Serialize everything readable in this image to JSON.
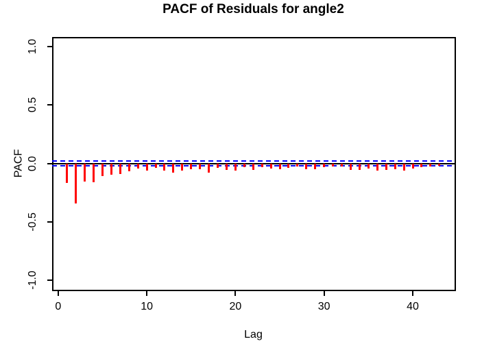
{
  "window": {
    "background": "#FFFFFF"
  },
  "chart_data": {
    "type": "bar",
    "title": "PACF of Residuals for angle2",
    "xlabel": "Lag",
    "ylabel": "PACF",
    "x": [
      1,
      2,
      3,
      4,
      5,
      6,
      7,
      8,
      9,
      10,
      11,
      12,
      13,
      14,
      15,
      16,
      17,
      18,
      19,
      20,
      21,
      22,
      23,
      24,
      25,
      26,
      27,
      28,
      29,
      30,
      31,
      32,
      33,
      34,
      35,
      36,
      37,
      38,
      39,
      40,
      41,
      42,
      43
    ],
    "values": [
      -0.168,
      -0.345,
      -0.153,
      -0.163,
      -0.107,
      -0.094,
      -0.088,
      -0.069,
      -0.046,
      -0.059,
      -0.039,
      -0.063,
      -0.078,
      -0.063,
      -0.051,
      -0.047,
      -0.081,
      -0.039,
      -0.056,
      -0.062,
      -0.033,
      -0.057,
      -0.033,
      -0.045,
      -0.048,
      -0.038,
      -0.026,
      -0.051,
      -0.047,
      -0.033,
      -0.028,
      -0.026,
      -0.056,
      -0.054,
      -0.044,
      -0.059,
      -0.056,
      -0.05,
      -0.06,
      -0.042,
      -0.03,
      -0.026,
      -0.018
    ],
    "ylim": [
      -1.0,
      1.0
    ],
    "xlim": [
      0,
      44
    ],
    "yticks": [
      1.0,
      0.5,
      0.0,
      -0.5,
      -1.0
    ],
    "ytick_labels": [
      "1.0",
      "0.5",
      "0.0",
      "-0.5",
      "-1.0"
    ],
    "xticks": [
      0,
      10,
      20,
      30,
      40
    ],
    "xtick_labels": [
      "0",
      "10",
      "20",
      "30",
      "40"
    ],
    "grid": false,
    "legend": null,
    "zero_line": 0.0,
    "confidence_bounds": {
      "upper": 0.02,
      "lower": -0.02,
      "style": "dashed"
    },
    "colors": {
      "bar": "#FF0000",
      "confidence": "#0000FF",
      "axis": "#000000",
      "title": "#000000",
      "background": "#FFFFFF"
    }
  }
}
